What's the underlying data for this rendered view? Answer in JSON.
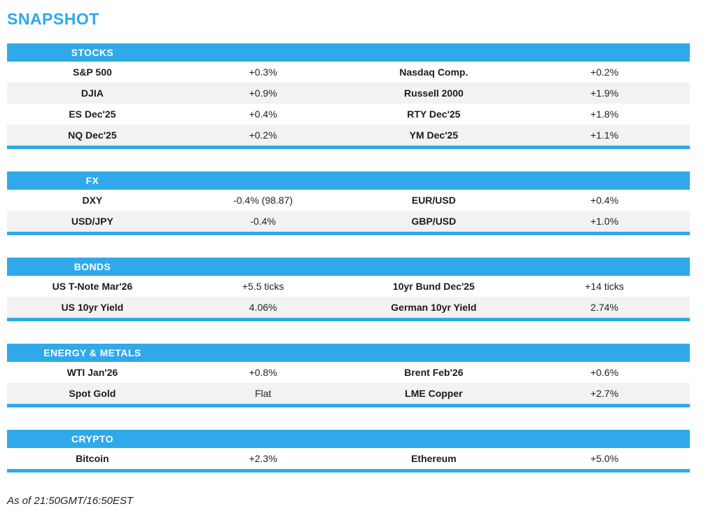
{
  "page": {
    "title": "SNAPSHOT",
    "footer": "As of 21:50GMT/16:50EST"
  },
  "colors": {
    "accent": "#2FA9EA",
    "row_alt": "#F2F2F2",
    "header_text": "#FFFFFF",
    "body_text": "#1C1C1E"
  },
  "sections": [
    {
      "id": "stocks",
      "header": "STOCKS",
      "rows": [
        [
          "S&P 500",
          "+0.3%",
          "Nasdaq Comp.",
          "+0.2%"
        ],
        [
          "DJIA",
          "+0.9%",
          "Russell 2000",
          "+1.9%"
        ],
        [
          "ES Dec'25",
          "+0.4%",
          "RTY Dec'25",
          "+1.8%"
        ],
        [
          "NQ Dec'25",
          "+0.2%",
          "YM Dec'25",
          "+1.1%"
        ]
      ]
    },
    {
      "id": "fx",
      "header": "FX",
      "rows": [
        [
          "DXY",
          "-0.4% (98.87)",
          "EUR/USD",
          "+0.4%"
        ],
        [
          "USD/JPY",
          "-0.4%",
          "GBP/USD",
          "+1.0%"
        ]
      ]
    },
    {
      "id": "bonds",
      "header": "BONDS",
      "rows": [
        [
          "US T-Note Mar'26",
          "+5.5 ticks",
          "10yr Bund Dec'25",
          "+14 ticks"
        ],
        [
          "US 10yr Yield",
          "4.06%",
          "German 10yr Yield",
          "2.74%"
        ]
      ]
    },
    {
      "id": "energy-metals",
      "header": "ENERGY & METALS",
      "rows": [
        [
          "WTI Jan'26",
          "+0.8%",
          "Brent Feb'26",
          "+0.6%"
        ],
        [
          "Spot Gold",
          "Flat",
          "LME Copper",
          "+2.7%"
        ]
      ]
    },
    {
      "id": "crypto",
      "header": "CRYPTO",
      "rows": [
        [
          "Bitcoin",
          "+2.3%",
          "Ethereum",
          "+5.0%"
        ]
      ]
    }
  ]
}
